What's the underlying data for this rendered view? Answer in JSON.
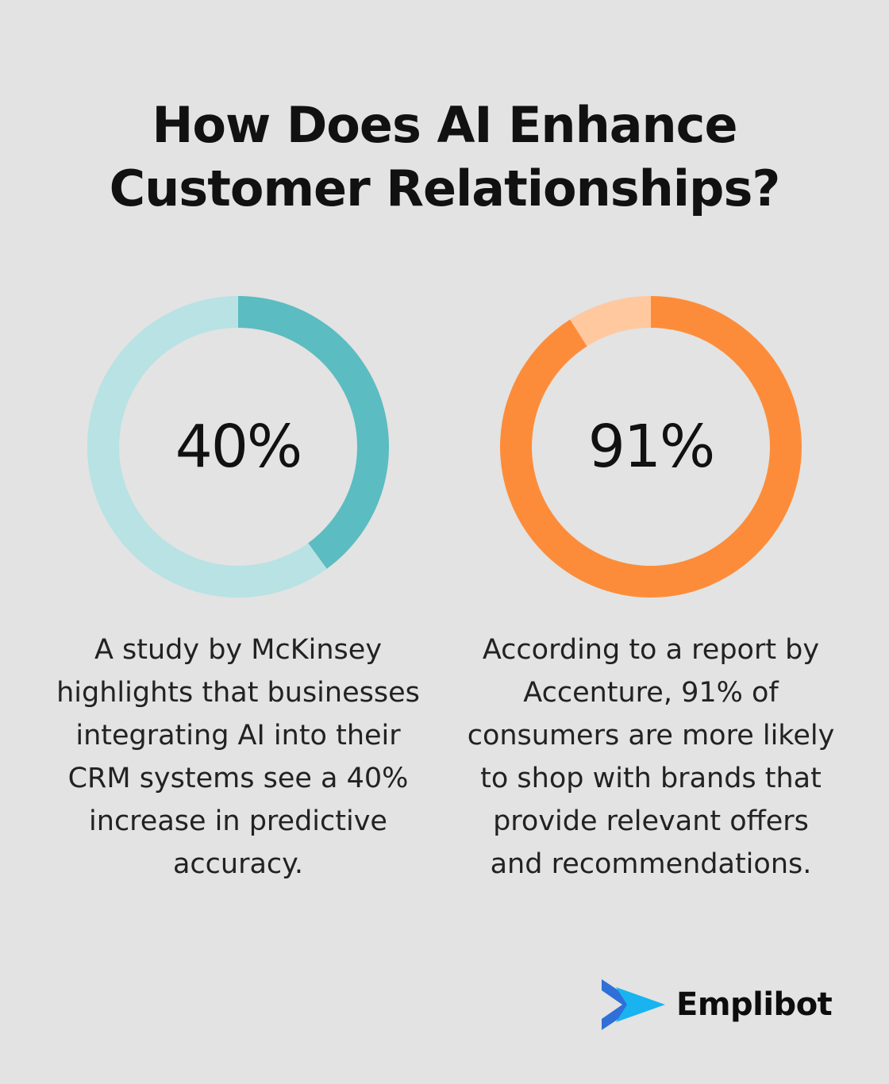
{
  "title_lines": [
    "How Does AI Enhance",
    "Customer Relationships?"
  ],
  "chart_data": [
    {
      "type": "pie",
      "donut": true,
      "label": "40%",
      "values": [
        40,
        60
      ],
      "colors": [
        "#5bbcc1",
        "#b8e2e4"
      ]
    },
    {
      "type": "pie",
      "donut": true,
      "label": "91%",
      "values": [
        91,
        9
      ],
      "colors": [
        "#fd8c3a",
        "#ffc89f"
      ]
    }
  ],
  "captions": {
    "left": [
      "A study by McKinsey",
      "highlights that businesses",
      "integrating AI into their",
      "CRM systems see a 40%",
      "increase in predictive",
      "accuracy."
    ],
    "right": [
      "According to a report by",
      "Accenture, 91% of",
      "consumers are more likely",
      "to shop with brands that",
      "provide relevant offers",
      "and recommendations."
    ]
  },
  "brand": {
    "name": "Emplibot",
    "icon": "play-arrows-logo-icon",
    "colors": [
      "#2f6fd8",
      "#19b3f0"
    ]
  }
}
